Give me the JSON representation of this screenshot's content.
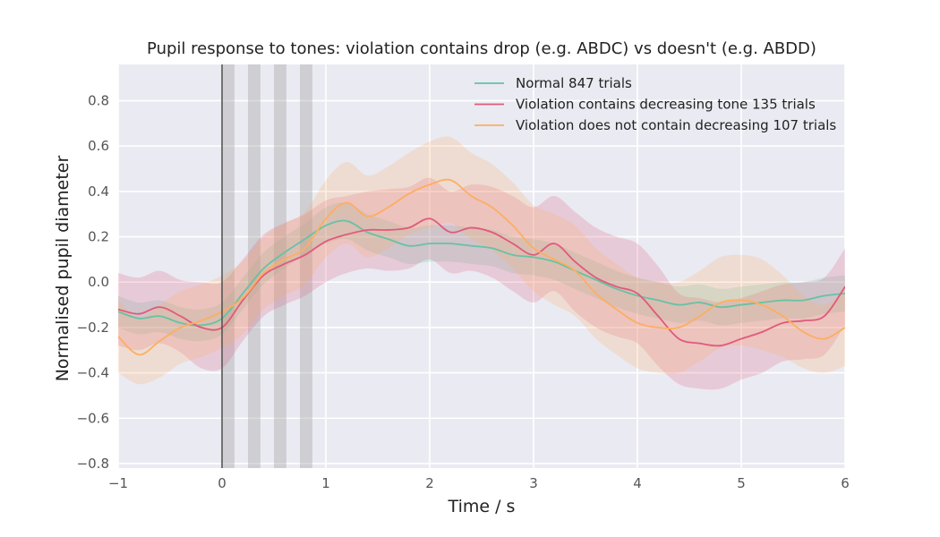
{
  "chart_data": {
    "type": "line",
    "title": "Pupil response to tones: violation contains drop (e.g. ABDC) vs doesn't (e.g. ABDD)",
    "xlabel": "Time / s",
    "ylabel": "Normalised pupil diameter",
    "xlim": [
      -1,
      6
    ],
    "ylim": [
      -0.82,
      0.96
    ],
    "xticks": [
      -1,
      0,
      1,
      2,
      3,
      4,
      5,
      6
    ],
    "yticks": [
      -0.8,
      -0.6,
      -0.4,
      -0.2,
      0.0,
      0.2,
      0.4,
      0.6,
      0.8
    ],
    "ytick_labels": [
      "−0.8",
      "−0.6",
      "−0.4",
      "−0.2",
      "0.0",
      "0.2",
      "0.4",
      "0.6",
      "0.8"
    ],
    "xtick_labels": [
      "−1",
      "0",
      "1",
      "2",
      "3",
      "4",
      "5",
      "6"
    ],
    "grid": true,
    "legend_position": "top-right",
    "background_color": "#eaeaf2",
    "vline": {
      "x": 0,
      "color": "#555555"
    },
    "shaded_intervals": [
      [
        0,
        0.12
      ],
      [
        0.25,
        0.37
      ],
      [
        0.5,
        0.62
      ],
      [
        0.75,
        0.87
      ]
    ],
    "series": [
      {
        "name": "Normal 847 trials",
        "color": "#66c2a5",
        "x": [
          -1,
          -0.8,
          -0.6,
          -0.4,
          -0.2,
          0,
          0.2,
          0.4,
          0.6,
          0.8,
          1.0,
          1.2,
          1.4,
          1.6,
          1.8,
          2.0,
          2.2,
          2.4,
          2.6,
          2.8,
          3.0,
          3.2,
          3.4,
          3.6,
          3.8,
          4.0,
          4.2,
          4.4,
          4.6,
          4.8,
          5.0,
          5.2,
          5.4,
          5.6,
          5.8,
          6.0
        ],
        "y": [
          -0.13,
          -0.16,
          -0.15,
          -0.18,
          -0.19,
          -0.16,
          -0.05,
          0.06,
          0.13,
          0.19,
          0.25,
          0.27,
          0.22,
          0.19,
          0.16,
          0.17,
          0.17,
          0.16,
          0.15,
          0.12,
          0.11,
          0.09,
          0.05,
          0.01,
          -0.03,
          -0.06,
          -0.08,
          -0.1,
          -0.09,
          -0.11,
          -0.1,
          -0.09,
          -0.08,
          -0.08,
          -0.06,
          -0.05
        ],
        "lower": [
          -0.2,
          -0.23,
          -0.22,
          -0.25,
          -0.26,
          -0.23,
          -0.12,
          -0.01,
          0.06,
          0.12,
          0.17,
          0.19,
          0.14,
          0.11,
          0.08,
          0.09,
          0.09,
          0.08,
          0.07,
          0.04,
          0.03,
          0.01,
          -0.03,
          -0.07,
          -0.11,
          -0.14,
          -0.16,
          -0.18,
          -0.17,
          -0.19,
          -0.18,
          -0.17,
          -0.16,
          -0.16,
          -0.14,
          -0.13
        ],
        "upper": [
          -0.06,
          -0.09,
          -0.08,
          -0.11,
          -0.12,
          -0.09,
          0.02,
          0.13,
          0.2,
          0.26,
          0.33,
          0.35,
          0.3,
          0.27,
          0.24,
          0.25,
          0.25,
          0.24,
          0.23,
          0.2,
          0.19,
          0.17,
          0.13,
          0.09,
          0.05,
          0.02,
          0.0,
          -0.02,
          -0.01,
          -0.03,
          -0.02,
          -0.01,
          0.0,
          0.0,
          0.02,
          0.03
        ]
      },
      {
        "name": "Violation contains decreasing tone 135 trials",
        "color": "#e05a7b",
        "x": [
          -1,
          -0.8,
          -0.6,
          -0.4,
          -0.2,
          0,
          0.2,
          0.4,
          0.6,
          0.8,
          1.0,
          1.2,
          1.4,
          1.6,
          1.8,
          2.0,
          2.2,
          2.4,
          2.6,
          2.8,
          3.0,
          3.2,
          3.4,
          3.6,
          3.8,
          4.0,
          4.2,
          4.4,
          4.6,
          4.8,
          5.0,
          5.2,
          5.4,
          5.6,
          5.8,
          6.0
        ],
        "y": [
          -0.12,
          -0.14,
          -0.11,
          -0.15,
          -0.2,
          -0.2,
          -0.08,
          0.03,
          0.08,
          0.12,
          0.18,
          0.21,
          0.23,
          0.23,
          0.24,
          0.28,
          0.22,
          0.24,
          0.22,
          0.17,
          0.12,
          0.17,
          0.09,
          0.02,
          -0.02,
          -0.05,
          -0.15,
          -0.25,
          -0.27,
          -0.28,
          -0.25,
          -0.22,
          -0.18,
          -0.17,
          -0.15,
          -0.02
        ],
        "lower": [
          -0.28,
          -0.3,
          -0.27,
          -0.31,
          -0.38,
          -0.38,
          -0.26,
          -0.15,
          -0.1,
          -0.06,
          0.0,
          0.04,
          0.06,
          0.05,
          0.06,
          0.1,
          0.04,
          0.05,
          0.02,
          -0.04,
          -0.09,
          -0.04,
          -0.13,
          -0.2,
          -0.24,
          -0.27,
          -0.37,
          -0.45,
          -0.47,
          -0.47,
          -0.43,
          -0.4,
          -0.35,
          -0.34,
          -0.32,
          -0.19
        ],
        "upper": [
          0.04,
          0.02,
          0.05,
          0.01,
          0.0,
          0.0,
          0.1,
          0.21,
          0.26,
          0.3,
          0.36,
          0.38,
          0.4,
          0.41,
          0.42,
          0.46,
          0.4,
          0.43,
          0.42,
          0.38,
          0.33,
          0.38,
          0.31,
          0.24,
          0.2,
          0.17,
          0.07,
          -0.05,
          -0.07,
          -0.09,
          -0.07,
          -0.04,
          -0.01,
          0.0,
          0.02,
          0.15
        ]
      },
      {
        "name": "Violation does not contain decreasing  107 trials",
        "color": "#fdae61",
        "x": [
          -1,
          -0.8,
          -0.6,
          -0.4,
          -0.2,
          0,
          0.2,
          0.4,
          0.6,
          0.8,
          1.0,
          1.2,
          1.4,
          1.6,
          1.8,
          2.0,
          2.2,
          2.4,
          2.6,
          2.8,
          3.0,
          3.2,
          3.4,
          3.6,
          3.8,
          4.0,
          4.2,
          4.4,
          4.6,
          4.8,
          5.0,
          5.2,
          5.4,
          5.6,
          5.8,
          6.0
        ],
        "y": [
          -0.24,
          -0.32,
          -0.26,
          -0.2,
          -0.17,
          -0.13,
          -0.07,
          0.04,
          0.1,
          0.15,
          0.28,
          0.35,
          0.29,
          0.33,
          0.39,
          0.43,
          0.45,
          0.38,
          0.33,
          0.25,
          0.15,
          0.1,
          0.05,
          -0.05,
          -0.12,
          -0.18,
          -0.2,
          -0.2,
          -0.15,
          -0.09,
          -0.08,
          -0.1,
          -0.15,
          -0.22,
          -0.25,
          -0.2
        ],
        "lower": [
          -0.4,
          -0.45,
          -0.42,
          -0.36,
          -0.33,
          -0.29,
          -0.23,
          -0.12,
          -0.06,
          -0.01,
          0.11,
          0.17,
          0.11,
          0.15,
          0.21,
          0.24,
          0.26,
          0.19,
          0.14,
          0.06,
          -0.04,
          -0.1,
          -0.15,
          -0.25,
          -0.32,
          -0.38,
          -0.4,
          -0.4,
          -0.35,
          -0.29,
          -0.28,
          -0.3,
          -0.33,
          -0.38,
          -0.4,
          -0.37
        ],
        "upper": [
          -0.08,
          -0.16,
          -0.1,
          -0.04,
          -0.01,
          0.03,
          0.09,
          0.2,
          0.26,
          0.31,
          0.45,
          0.53,
          0.47,
          0.51,
          0.57,
          0.62,
          0.64,
          0.57,
          0.52,
          0.44,
          0.34,
          0.3,
          0.25,
          0.15,
          0.08,
          0.02,
          0.0,
          0.0,
          0.05,
          0.11,
          0.12,
          0.1,
          0.03,
          -0.06,
          -0.1,
          -0.03
        ]
      }
    ]
  }
}
